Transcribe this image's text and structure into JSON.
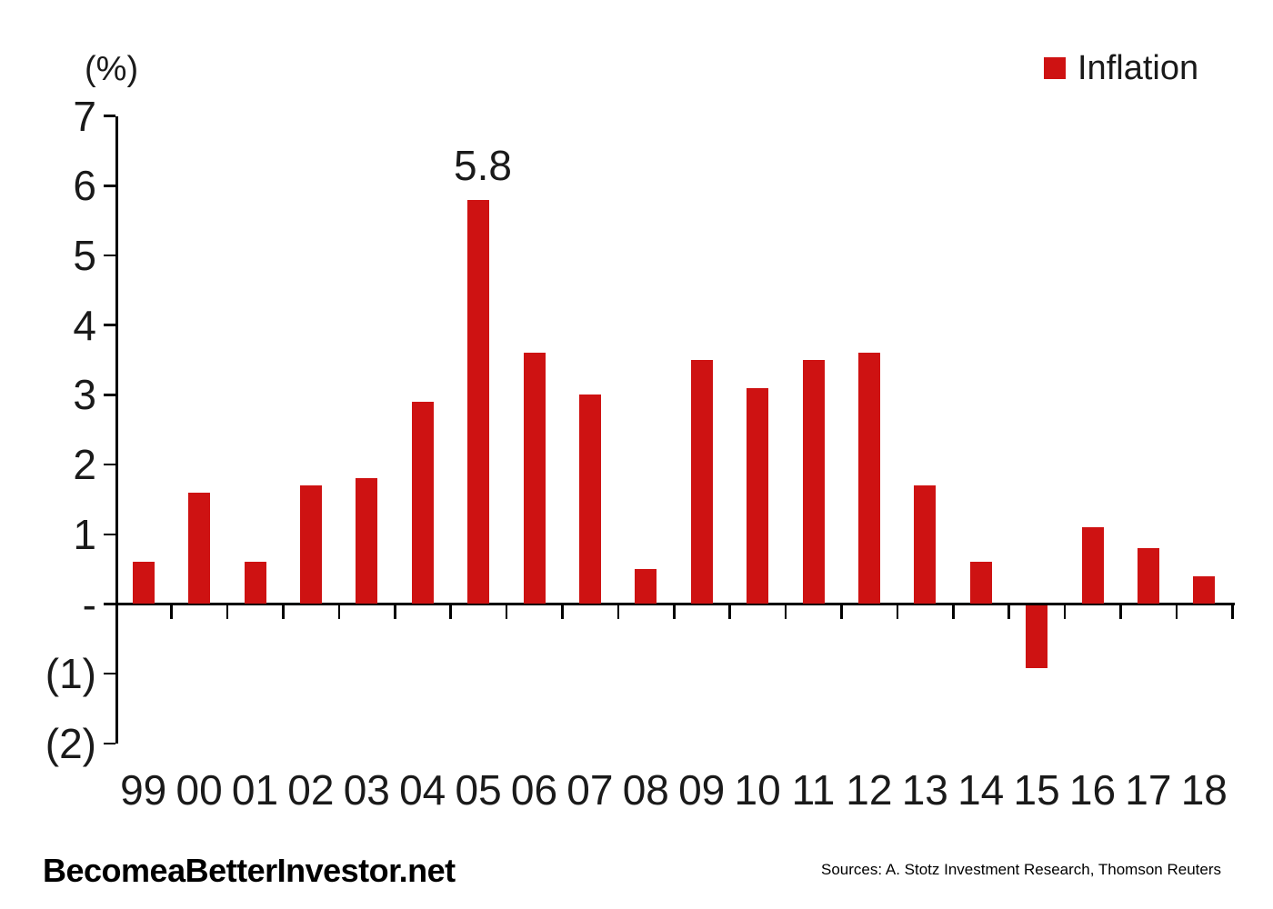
{
  "chart_data": {
    "type": "bar",
    "title": "",
    "unit_label": "(%)",
    "bar_color": "#CE1212",
    "grid": false,
    "legend": [
      {
        "label": "Inflation",
        "color": "#CE1212",
        "position": "top-right"
      }
    ],
    "categories": [
      "99",
      "00",
      "01",
      "02",
      "03",
      "04",
      "05",
      "06",
      "07",
      "08",
      "09",
      "10",
      "11",
      "12",
      "13",
      "14",
      "15",
      "16",
      "17",
      "18"
    ],
    "series": [
      {
        "name": "Inflation",
        "values": [
          0.6,
          1.6,
          0.6,
          1.7,
          1.8,
          2.9,
          5.8,
          3.6,
          3.0,
          0.5,
          3.5,
          3.1,
          3.5,
          3.6,
          1.7,
          0.6,
          -0.9,
          1.1,
          0.8,
          0.4
        ]
      }
    ],
    "annotation": {
      "category": "05",
      "label": "5.8"
    },
    "y_axis": {
      "range": [
        -2,
        7
      ],
      "ticks": [
        {
          "value": 7,
          "label": "7"
        },
        {
          "value": 6,
          "label": "6"
        },
        {
          "value": 5,
          "label": "5"
        },
        {
          "value": 4,
          "label": "4"
        },
        {
          "value": 3,
          "label": "3"
        },
        {
          "value": 2,
          "label": "2"
        },
        {
          "value": 1,
          "label": "1"
        },
        {
          "value": 0,
          "label": "-"
        },
        {
          "value": -1,
          "label": "(1)"
        },
        {
          "value": -2,
          "label": "(2)"
        }
      ]
    }
  },
  "footer": {
    "brand": "BecomeaBetterInvestor.net",
    "sources": "Sources: A. Stotz Investment Research, Thomson Reuters"
  }
}
